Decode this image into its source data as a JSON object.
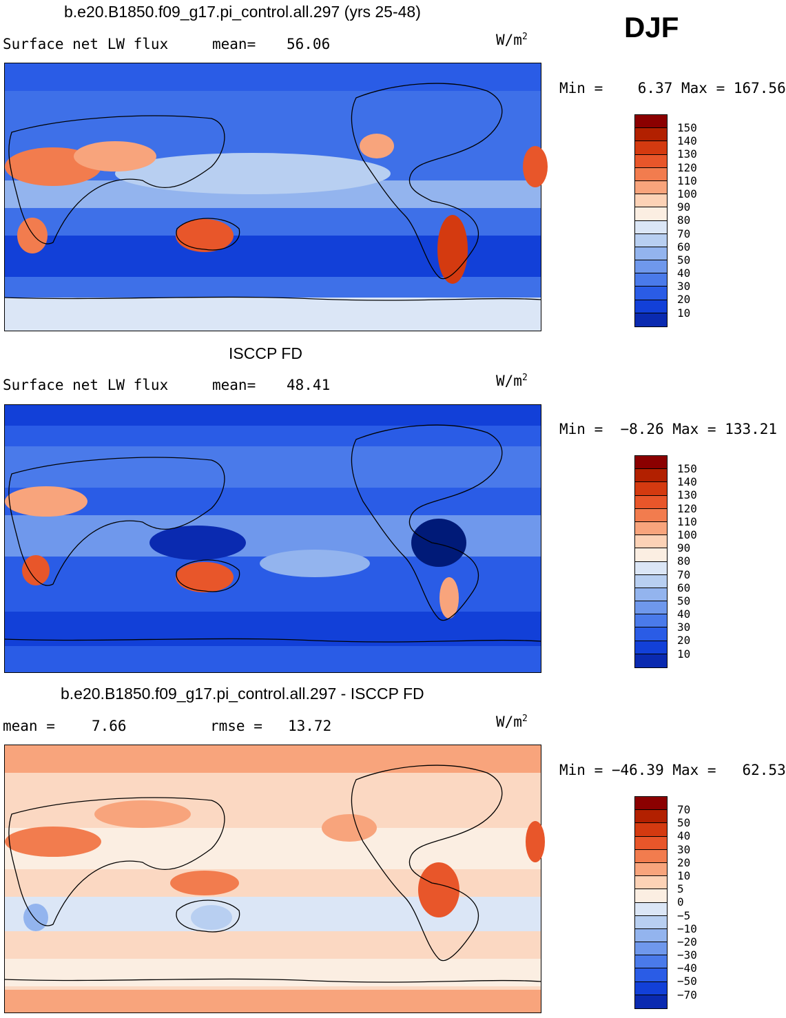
{
  "season": "DJF",
  "panels": [
    {
      "title": "b.e20.B1850.f09_g17.pi_control.all.297 (yrs 25-48)",
      "left_label": "Surface net LW flux",
      "stat_label": "mean=",
      "stat_value": "56.06",
      "units_base": "W/m",
      "units_exp": "2",
      "minmax": "Min =    6.37 Max = 167.56",
      "colorbar": [
        "#8b0000",
        "#b22000",
        "#d43a10",
        "#e8562a",
        "#f27c4e",
        "#f8a47c",
        "#fcd2b6",
        "#fbeee2",
        "#dbe6f6",
        "#b8cff1",
        "#93b4ee",
        "#6f98ec",
        "#4a7aea",
        "#2a5ce6",
        "#1240d8",
        "#0a2ab0",
        "#001a78"
      ],
      "ticks": [
        "150",
        "140",
        "130",
        "120",
        "110",
        "100",
        "90",
        "80",
        "70",
        "60",
        "50",
        "40",
        "30",
        "20",
        "10"
      ],
      "base_color": "#3e70e8"
    },
    {
      "title": "ISCCP FD",
      "left_label": "Surface net LW flux",
      "stat_label": "mean=",
      "stat_value": "48.41",
      "units_base": "W/m",
      "units_exp": "2",
      "minmax": "Min =  −8.26 Max = 133.21",
      "colorbar": [
        "#8b0000",
        "#b22000",
        "#d43a10",
        "#e8562a",
        "#f27c4e",
        "#f8a47c",
        "#fcd2b6",
        "#fbeee2",
        "#dbe6f6",
        "#b8cff1",
        "#93b4ee",
        "#6f98ec",
        "#4a7aea",
        "#2a5ce6",
        "#1240d8",
        "#0a2ab0",
        "#001a78"
      ],
      "ticks": [
        "150",
        "140",
        "130",
        "120",
        "110",
        "100",
        "90",
        "80",
        "70",
        "60",
        "50",
        "40",
        "30",
        "20",
        "10"
      ],
      "base_color": "#2a5ce6"
    },
    {
      "title": "b.e20.B1850.f09_g17.pi_control.all.297 - ISCCP FD",
      "left_label": "mean =",
      "left_value": "7.66",
      "stat_label": "rmse =",
      "stat_value": "13.72",
      "units_base": "W/m",
      "units_exp": "2",
      "minmax": "Min = −46.39 Max =   62.53",
      "colorbar": [
        "#8b0000",
        "#b22000",
        "#d43a10",
        "#e8562a",
        "#f27c4e",
        "#f8a47c",
        "#fcd2b6",
        "#fbeee2",
        "#dbe6f6",
        "#b8cff1",
        "#93b4ee",
        "#6f98ec",
        "#4a7aea",
        "#2a5ce6",
        "#1240d8",
        "#0a2ab0",
        "#001a78"
      ],
      "ticks": [
        "70",
        "50",
        "40",
        "30",
        "20",
        "10",
        "5",
        "0",
        "−5",
        "−10",
        "−20",
        "−30",
        "−40",
        "−50",
        "−70"
      ],
      "base_color": "#f9c8a8"
    }
  ]
}
